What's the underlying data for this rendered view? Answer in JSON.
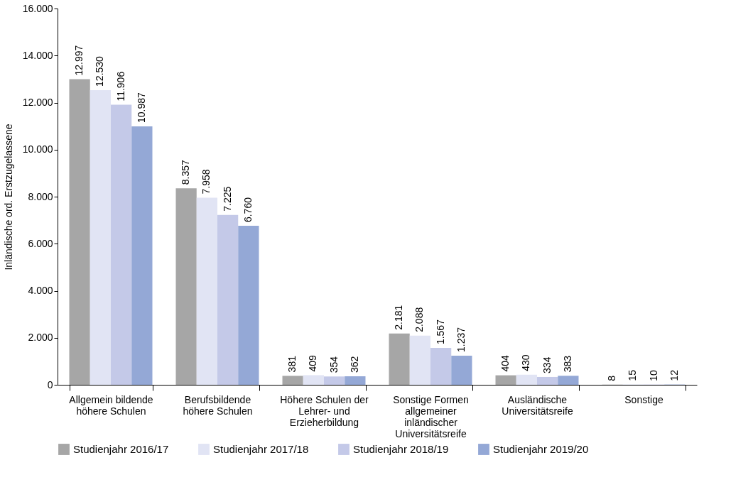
{
  "chart_data": {
    "type": "bar",
    "ylabel": "Inländische ord. Erstzugelassene",
    "categories": [
      "Allgemein bildende höhere Schulen",
      "Berufsbildende höhere Schulen",
      "Höhere Schulen der Lehrer- und Erzieherbildung",
      "Sonstige Formen allgemeiner inländischer Universitätsreife",
      "Ausländische Universitätsreife",
      "Sonstige"
    ],
    "series": [
      {
        "name": "Studienjahr 2016/17",
        "color": "#a6a6a6",
        "values": [
          12997,
          8357,
          381,
          2181,
          404,
          8
        ],
        "value_labels": [
          "12.997",
          "8.357",
          "381",
          "2.181",
          "404",
          "8"
        ]
      },
      {
        "name": "Studienjahr 2017/18",
        "color": "#e1e4f4",
        "values": [
          12530,
          7958,
          409,
          2088,
          430,
          15
        ],
        "value_labels": [
          "12.530",
          "7.958",
          "409",
          "2.088",
          "430",
          "15"
        ]
      },
      {
        "name": "Studienjahr 2018/19",
        "color": "#c4c9e8",
        "values": [
          11906,
          7225,
          354,
          1567,
          334,
          10
        ],
        "value_labels": [
          "11.906",
          "7.225",
          "354",
          "1.567",
          "334",
          "10"
        ]
      },
      {
        "name": "Studienjahr 2019/20",
        "color": "#94a8d6",
        "values": [
          10987,
          6760,
          362,
          1237,
          383,
          12
        ],
        "value_labels": [
          "10.987",
          "6.760",
          "362",
          "1.237",
          "383",
          "12"
        ]
      }
    ],
    "ylim": [
      0,
      16000
    ],
    "yticks": [
      {
        "value": 0,
        "label": "0"
      },
      {
        "value": 2000,
        "label": "2.000"
      },
      {
        "value": 4000,
        "label": "4.000"
      },
      {
        "value": 6000,
        "label": "6.000"
      },
      {
        "value": 8000,
        "label": "8.000"
      },
      {
        "value": 10000,
        "label": "10.000"
      },
      {
        "value": 12000,
        "label": "12.000"
      },
      {
        "value": 14000,
        "label": "14.000"
      },
      {
        "value": 16000,
        "label": "16.000"
      }
    ],
    "grid": false,
    "legend": "bottom"
  }
}
